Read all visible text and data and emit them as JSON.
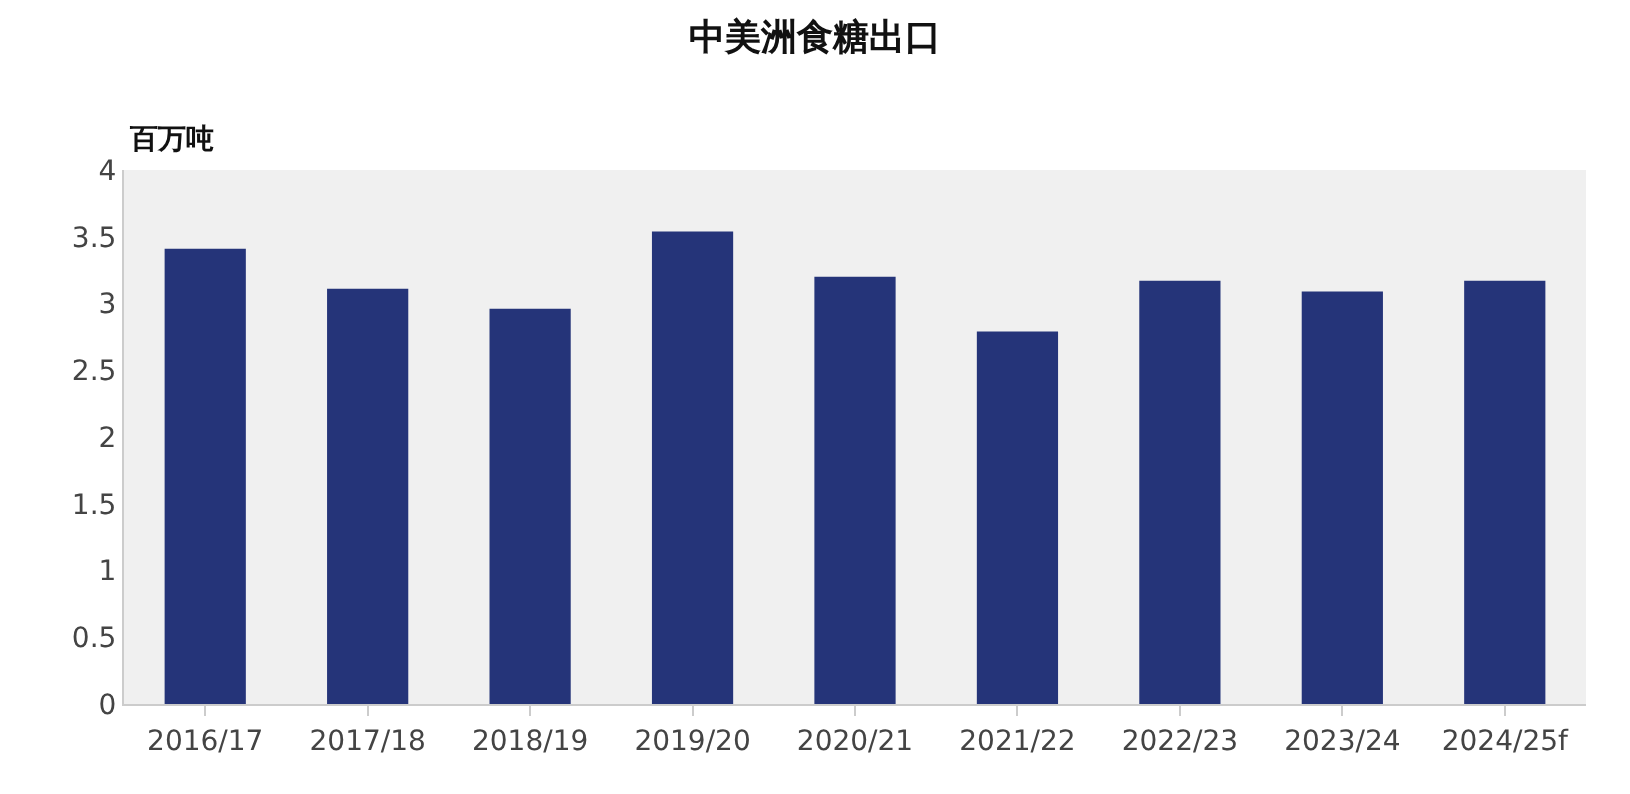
{
  "chart_data": {
    "type": "bar",
    "title": "中美洲食糖出口",
    "ylabel": "百万吨",
    "categories": [
      "2016/17",
      "2017/18",
      "2018/19",
      "2019/20",
      "2020/21",
      "2021/22",
      "2022/23",
      "2023/24",
      "2024/25f"
    ],
    "values": [
      3.41,
      3.11,
      2.96,
      3.54,
      3.2,
      2.79,
      3.17,
      3.09,
      3.17
    ],
    "color": "#253479",
    "ylim": [
      0,
      4
    ],
    "yticks": [
      0,
      0.5,
      1,
      1.5,
      2,
      2.5,
      3,
      3.5,
      4
    ],
    "grid": false,
    "legend": false
  }
}
